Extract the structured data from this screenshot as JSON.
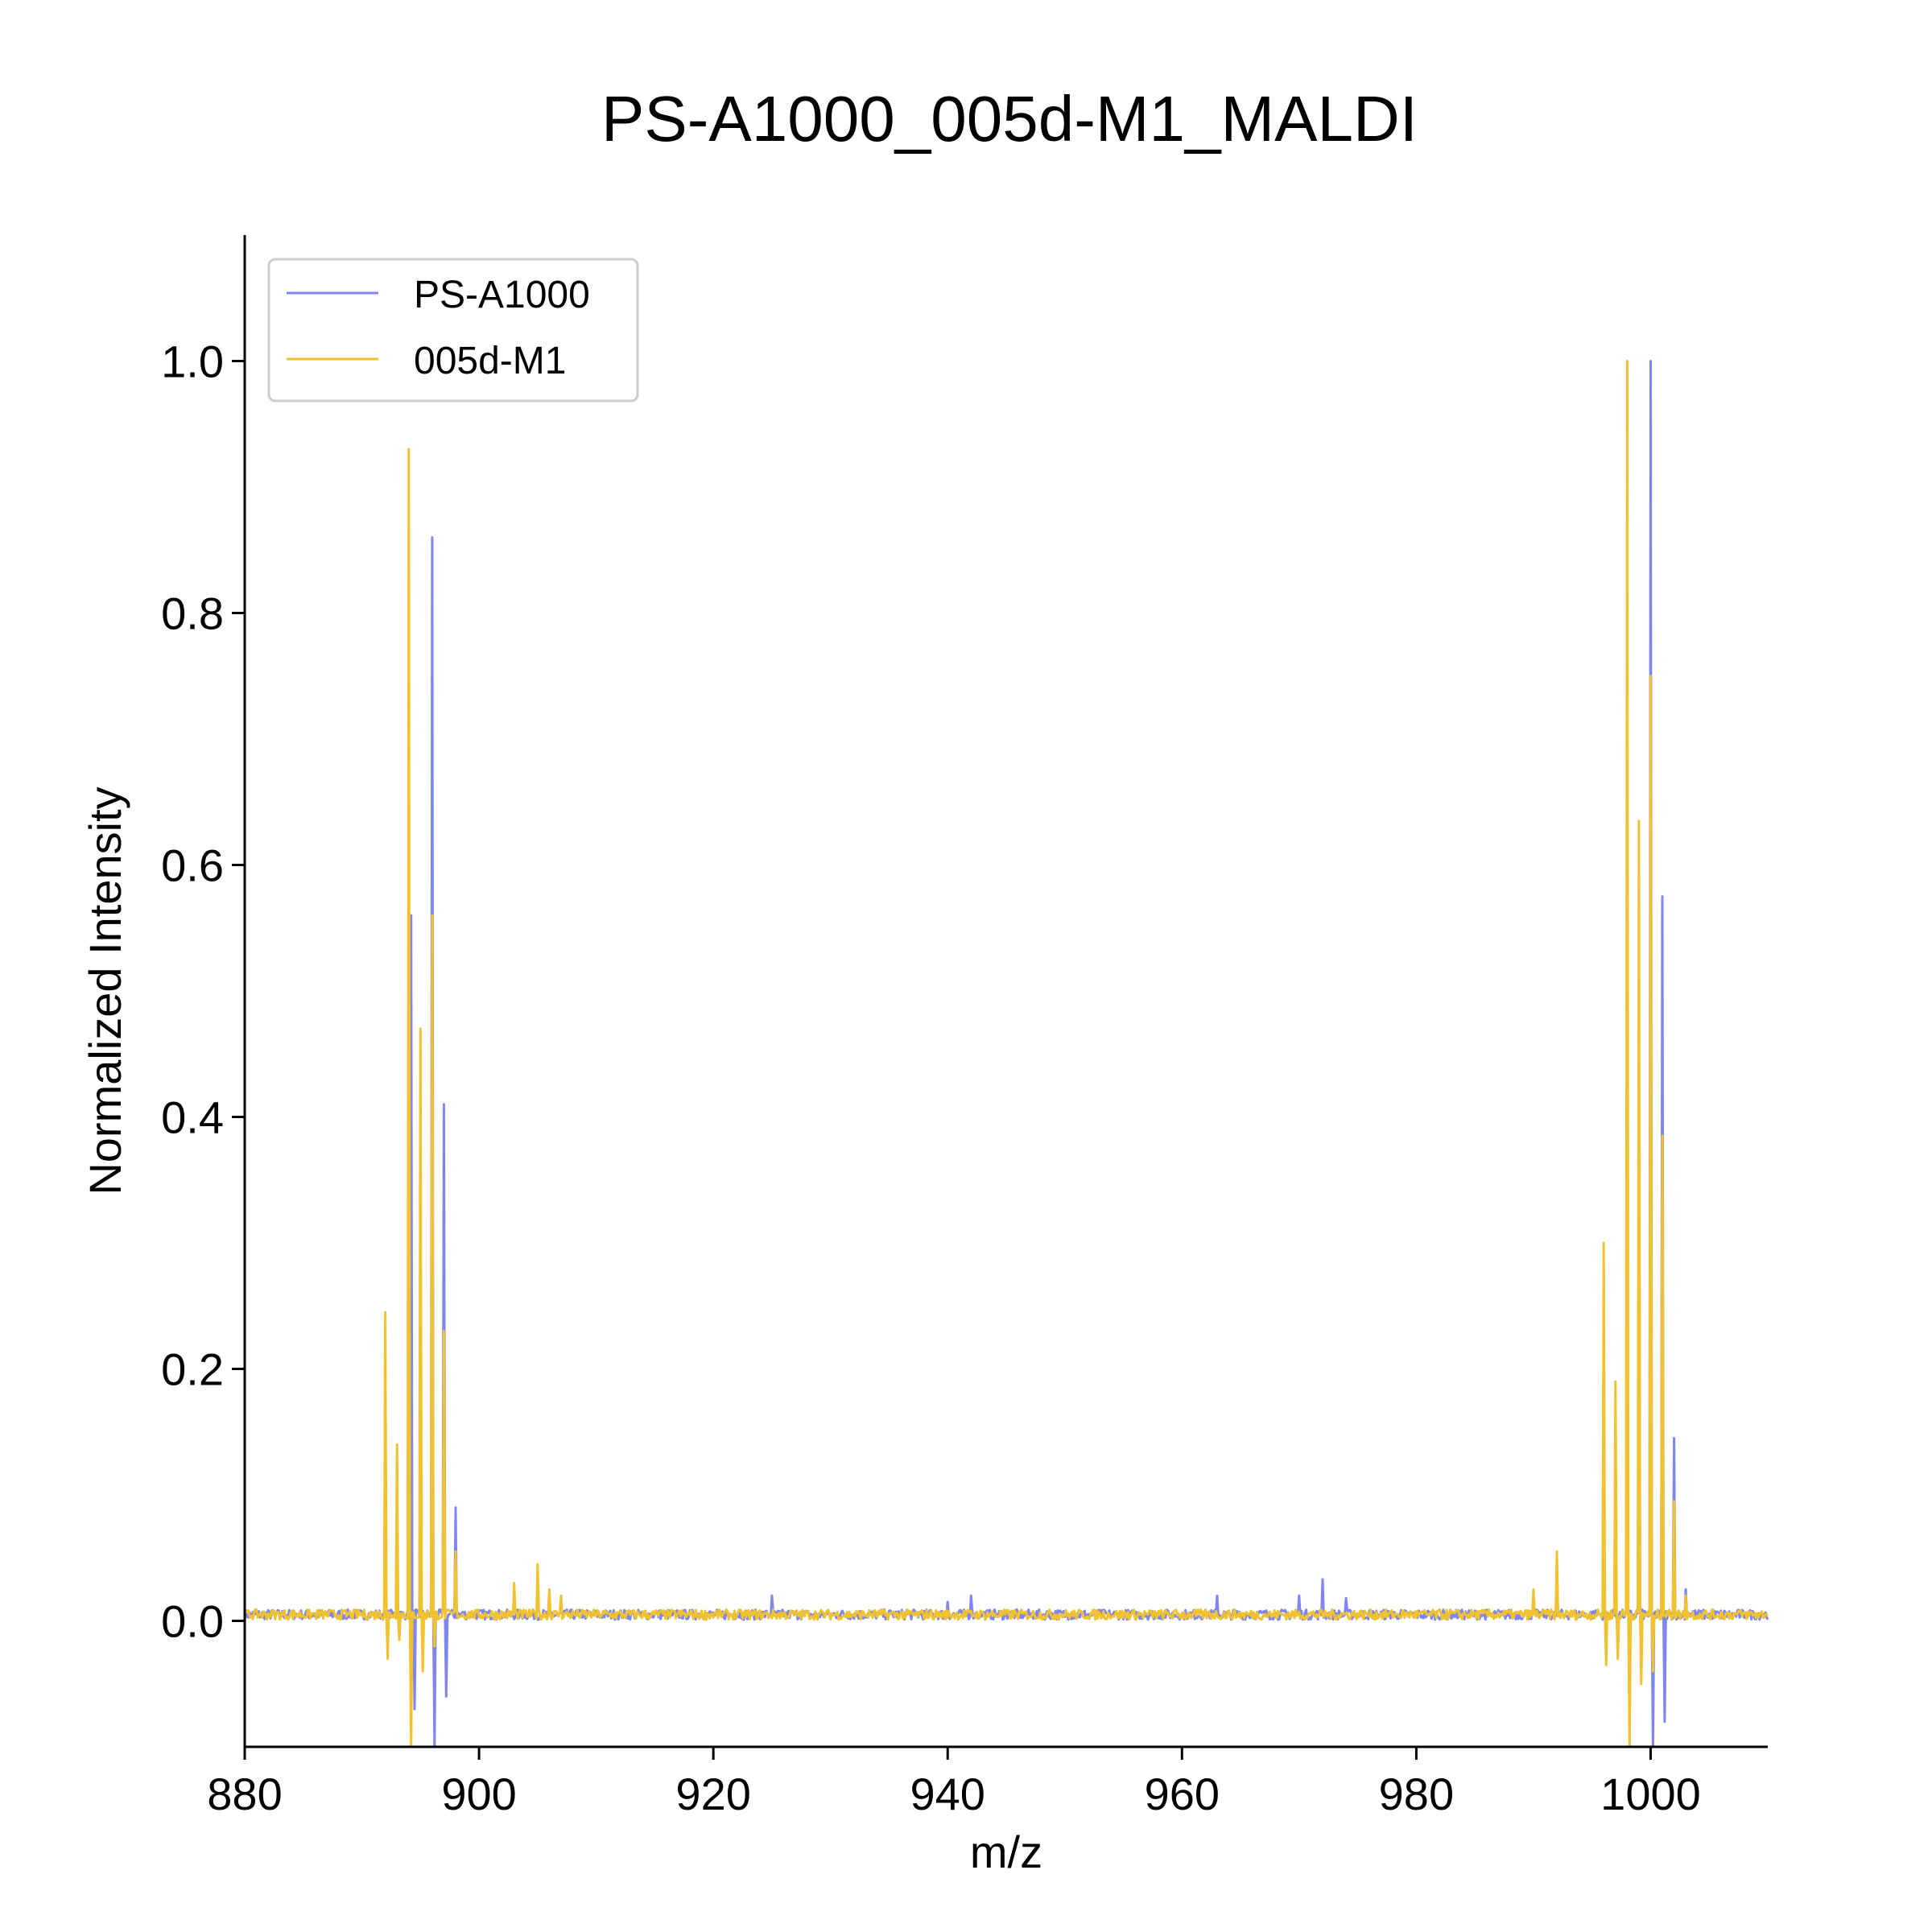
{
  "chart_data": {
    "type": "line",
    "title": "PS-A1000_005d-M1_MALDI",
    "xlabel": "m/z",
    "ylabel": "Normalized Intensity",
    "xlim": [
      880,
      1010
    ],
    "ylim": [
      -0.1,
      1.1
    ],
    "xticks": [
      880,
      900,
      920,
      940,
      960,
      980,
      1000
    ],
    "xtick_labels": [
      "880",
      "900",
      "920",
      "940",
      "960",
      "980",
      "1000"
    ],
    "yticks": [
      0.0,
      0.2,
      0.4,
      0.6,
      0.8,
      1.0
    ],
    "ytick_labels": [
      "0.0",
      "0.2",
      "0.4",
      "0.6",
      "0.8",
      "1.0"
    ],
    "grid": false,
    "legend_position": "top-left",
    "baseline_noise": 0.005,
    "series": [
      {
        "name": "PS-A1000",
        "color": "#7f86f0",
        "peaks": [
          {
            "x": 894.2,
            "y": 0.56
          },
          {
            "x": 894.5,
            "y": -0.07
          },
          {
            "x": 896.0,
            "y": 0.86
          },
          {
            "x": 896.2,
            "y": -0.1
          },
          {
            "x": 897.0,
            "y": 0.41
          },
          {
            "x": 897.2,
            "y": -0.06
          },
          {
            "x": 898.0,
            "y": 0.09
          },
          {
            "x": 925.0,
            "y": 0.02
          },
          {
            "x": 940.0,
            "y": 0.015
          },
          {
            "x": 942.0,
            "y": 0.02
          },
          {
            "x": 963.0,
            "y": 0.02
          },
          {
            "x": 970.0,
            "y": 0.02
          },
          {
            "x": 972.0,
            "y": 0.033
          },
          {
            "x": 974.0,
            "y": 0.018
          },
          {
            "x": 999.0,
            "y": 0.25
          },
          {
            "x": 1000.0,
            "y": 1.0
          },
          {
            "x": 1000.2,
            "y": -0.1
          },
          {
            "x": 1001.0,
            "y": 0.575
          },
          {
            "x": 1001.2,
            "y": -0.08
          },
          {
            "x": 1002.0,
            "y": 0.145
          },
          {
            "x": 1003.0,
            "y": 0.025
          }
        ]
      },
      {
        "name": "005d-M1",
        "color": "#f0c230",
        "peaks": [
          {
            "x": 892.0,
            "y": 0.245
          },
          {
            "x": 892.2,
            "y": -0.03
          },
          {
            "x": 893.0,
            "y": 0.14
          },
          {
            "x": 893.2,
            "y": -0.015
          },
          {
            "x": 894.0,
            "y": 0.93
          },
          {
            "x": 894.2,
            "y": -0.1
          },
          {
            "x": 895.0,
            "y": 0.47
          },
          {
            "x": 895.2,
            "y": -0.04
          },
          {
            "x": 896.0,
            "y": 0.56
          },
          {
            "x": 896.2,
            "y": -0.02
          },
          {
            "x": 897.0,
            "y": 0.23
          },
          {
            "x": 898.0,
            "y": 0.055
          },
          {
            "x": 903.0,
            "y": 0.03
          },
          {
            "x": 905.0,
            "y": 0.045
          },
          {
            "x": 906.0,
            "y": 0.025
          },
          {
            "x": 907.0,
            "y": 0.02
          },
          {
            "x": 992.0,
            "y": 0.055
          },
          {
            "x": 990.0,
            "y": 0.025
          },
          {
            "x": 996.0,
            "y": 0.3
          },
          {
            "x": 996.2,
            "y": -0.035
          },
          {
            "x": 997.0,
            "y": 0.19
          },
          {
            "x": 997.2,
            "y": -0.03
          },
          {
            "x": 998.0,
            "y": 1.0
          },
          {
            "x": 998.2,
            "y": -0.1
          },
          {
            "x": 999.0,
            "y": 0.635
          },
          {
            "x": 999.2,
            "y": -0.05
          },
          {
            "x": 1000.0,
            "y": 0.75
          },
          {
            "x": 1000.2,
            "y": -0.04
          },
          {
            "x": 1001.0,
            "y": 0.385
          },
          {
            "x": 1002.0,
            "y": 0.095
          },
          {
            "x": 1003.0,
            "y": 0.02
          }
        ]
      }
    ]
  }
}
